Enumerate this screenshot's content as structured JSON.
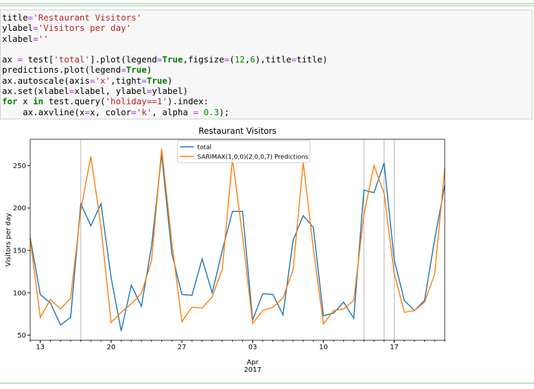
{
  "code": {
    "lines": [
      [
        {
          "text": "title",
          "color": "#000000"
        },
        {
          "text": "=",
          "color": "#aa22ff"
        },
        {
          "text": "'Restaurant Visitors'",
          "color": "#ba2121"
        }
      ],
      [
        {
          "text": "ylabel",
          "color": "#000000"
        },
        {
          "text": "=",
          "color": "#aa22ff"
        },
        {
          "text": "'Visitors per day'",
          "color": "#ba2121"
        }
      ],
      [
        {
          "text": "xlabel",
          "color": "#000000"
        },
        {
          "text": "=",
          "color": "#aa22ff"
        },
        {
          "text": "''",
          "color": "#ba2121"
        }
      ],
      [
        {
          "text": "ax ",
          "color": "#000000"
        },
        {
          "text": "=",
          "color": "#aa22ff"
        },
        {
          "text": " test[",
          "color": "#000000"
        },
        {
          "text": "'total'",
          "color": "#ba2121"
        },
        {
          "text": "].plot(legend",
          "color": "#000000"
        },
        {
          "text": "=",
          "color": "#aa22ff"
        },
        {
          "text": "True",
          "color": "#008000",
          "bold": true
        },
        {
          "text": ",figsize",
          "color": "#000000"
        },
        {
          "text": "=",
          "color": "#aa22ff"
        },
        {
          "text": "(",
          "color": "#000000"
        },
        {
          "text": "12",
          "color": "#008800"
        },
        {
          "text": ",",
          "color": "#000000"
        },
        {
          "text": "6",
          "color": "#008800"
        },
        {
          "text": "),title",
          "color": "#000000"
        },
        {
          "text": "=",
          "color": "#aa22ff"
        },
        {
          "text": "title)",
          "color": "#000000"
        }
      ],
      [
        {
          "text": "predictions.plot(legend",
          "color": "#000000"
        },
        {
          "text": "=",
          "color": "#aa22ff"
        },
        {
          "text": "True",
          "color": "#008000",
          "bold": true
        },
        {
          "text": ")",
          "color": "#000000"
        }
      ],
      [
        {
          "text": "ax.autoscale(axis",
          "color": "#000000"
        },
        {
          "text": "=",
          "color": "#aa22ff"
        },
        {
          "text": "'x'",
          "color": "#ba2121"
        },
        {
          "text": ",tight",
          "color": "#000000"
        },
        {
          "text": "=",
          "color": "#aa22ff"
        },
        {
          "text": "True",
          "color": "#008000",
          "bold": true
        },
        {
          "text": ")",
          "color": "#000000"
        }
      ],
      [
        {
          "text": "ax.set(xlabel",
          "color": "#000000"
        },
        {
          "text": "=",
          "color": "#aa22ff"
        },
        {
          "text": "xlabel, ylabel",
          "color": "#000000"
        },
        {
          "text": "=",
          "color": "#aa22ff"
        },
        {
          "text": "ylabel)",
          "color": "#000000"
        }
      ],
      [
        {
          "text": "for",
          "color": "#008000",
          "bold": true
        },
        {
          "text": " x ",
          "color": "#000000"
        },
        {
          "text": "in",
          "color": "#008000",
          "bold": true
        },
        {
          "text": " test.query(",
          "color": "#000000"
        },
        {
          "text": "'holiday==1'",
          "color": "#ba2121"
        },
        {
          "text": ").index:",
          "color": "#000000"
        }
      ],
      [
        {
          "text": "    ax.axvline(x",
          "color": "#000000"
        },
        {
          "text": "=",
          "color": "#aa22ff"
        },
        {
          "text": "x, color",
          "color": "#000000"
        },
        {
          "text": "=",
          "color": "#aa22ff"
        },
        {
          "text": "'k'",
          "color": "#ba2121"
        },
        {
          "text": ", alpha ",
          "color": "#000000"
        },
        {
          "text": "=",
          "color": "#aa22ff"
        },
        {
          "text": " ",
          "color": "#000000"
        },
        {
          "text": "0.3",
          "color": "#008800"
        },
        {
          "text": ");",
          "color": "#000000"
        }
      ]
    ]
  },
  "chart_data": {
    "type": "line",
    "title": "Restaurant Visitors",
    "y_label": "Visitors per day",
    "x": [
      "2017-03-12",
      "2017-03-13",
      "2017-03-14",
      "2017-03-15",
      "2017-03-16",
      "2017-03-17",
      "2017-03-18",
      "2017-03-19",
      "2017-03-20",
      "2017-03-21",
      "2017-03-22",
      "2017-03-23",
      "2017-03-24",
      "2017-03-25",
      "2017-03-26",
      "2017-03-27",
      "2017-03-28",
      "2017-03-29",
      "2017-03-30",
      "2017-03-31",
      "2017-04-01",
      "2017-04-02",
      "2017-04-03",
      "2017-04-04",
      "2017-04-05",
      "2017-04-06",
      "2017-04-07",
      "2017-04-08",
      "2017-04-09",
      "2017-04-10",
      "2017-04-11",
      "2017-04-12",
      "2017-04-13",
      "2017-04-14",
      "2017-04-15",
      "2017-04-16",
      "2017-04-17",
      "2017-04-18",
      "2017-04-19",
      "2017-04-20",
      "2017-04-21",
      "2017-04-22"
    ],
    "series": [
      {
        "name": "total",
        "color": "#1f77b4",
        "values": [
          165,
          98,
          88,
          62,
          71,
          205,
          179,
          205,
          118,
          55,
          109,
          84,
          155,
          263,
          147,
          98,
          97,
          140,
          100,
          150,
          196,
          196,
          68,
          99,
          98,
          74,
          162,
          191,
          177,
          73,
          76,
          89,
          70,
          221,
          218,
          253,
          139,
          91,
          79,
          91,
          163,
          227
        ]
      },
      {
        "name": "SARIMAX(1,0,0)(2,0,0,7) Predictions",
        "color": "#ff7f0e",
        "values": [
          163,
          71,
          92,
          81,
          94,
          197,
          261,
          178,
          65,
          77,
          87,
          99,
          138,
          270,
          160,
          66,
          83,
          82,
          95,
          128,
          258,
          167,
          64,
          79,
          83,
          94,
          127,
          254,
          152,
          63,
          79,
          81,
          91,
          192,
          250,
          217,
          123,
          77,
          79,
          89,
          122,
          247
        ]
      }
    ],
    "xlim": [
      "2017-03-12",
      "2017-04-22"
    ],
    "xticks": [
      {
        "value": "2017-03-13",
        "label": "13"
      },
      {
        "value": "2017-03-20",
        "label": "20"
      },
      {
        "value": "2017-03-27",
        "label": "27"
      },
      {
        "value": "2017-04-03",
        "label": "03"
      },
      {
        "value": "2017-04-10",
        "label": "10"
      },
      {
        "value": "2017-04-17",
        "label": "17"
      }
    ],
    "xticks_secondary": [
      {
        "value": "2017-04-03",
        "label": [
          "Apr",
          "2017"
        ]
      }
    ],
    "ylim": [
      44,
      281
    ],
    "yticks": [
      50,
      100,
      150,
      200,
      250
    ],
    "vlines": {
      "x": [
        "2017-03-17",
        "2017-04-14",
        "2017-04-16",
        "2017-04-17"
      ],
      "color": "#000000",
      "alpha": 0.3
    },
    "legend": "upper center",
    "grid": false
  }
}
